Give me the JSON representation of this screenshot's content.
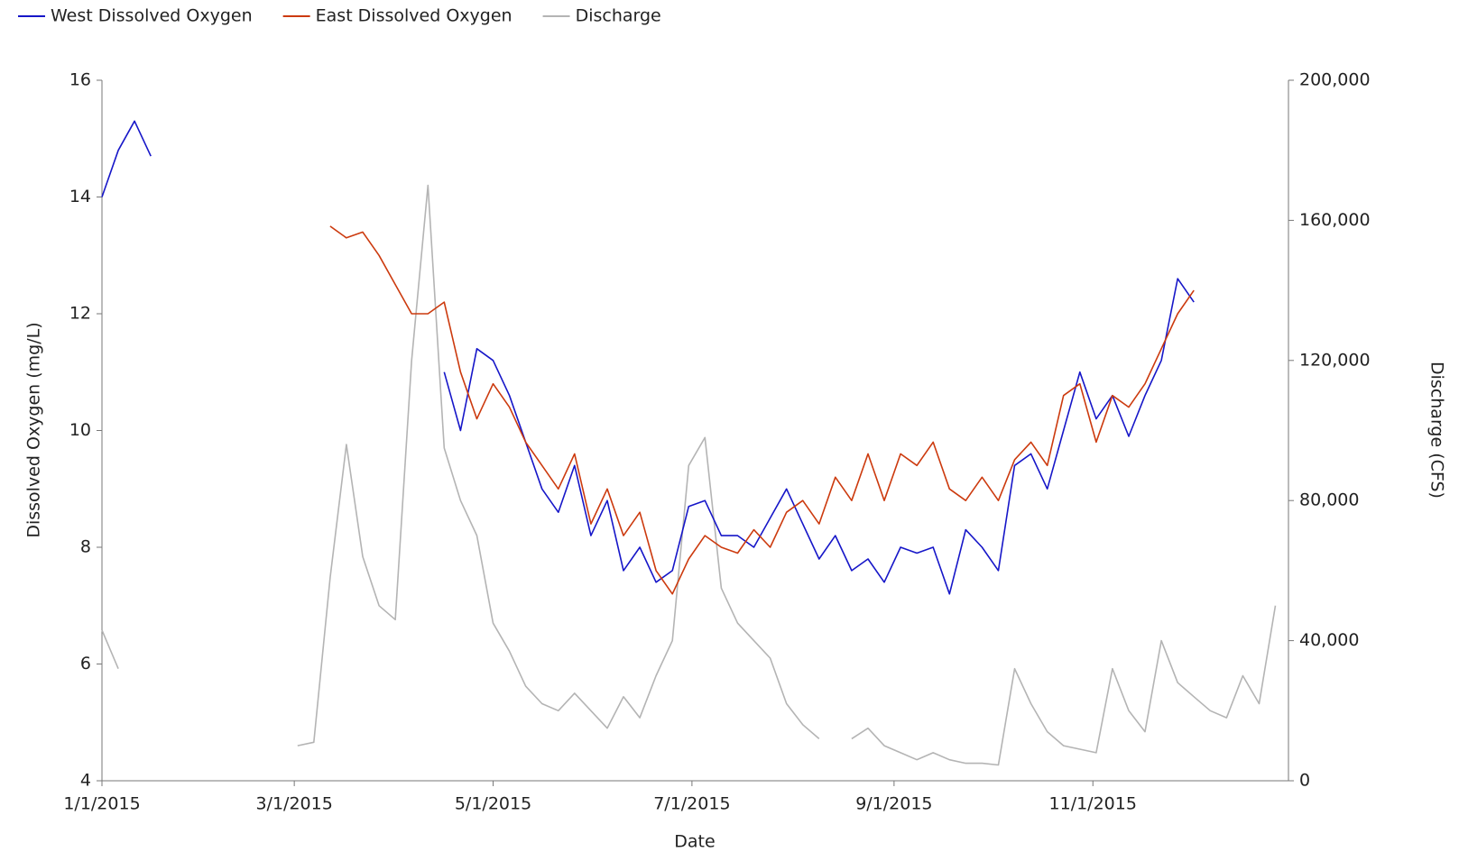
{
  "chart_data": {
    "type": "line",
    "xlabel": "Date",
    "ylabel": "Dissolved Oxygen (mg/L)",
    "y2label": "Discharge (CFS)",
    "legend": "top-left",
    "x": [
      "1/1/2015",
      "1/6/2015",
      "1/11/2015",
      "1/16/2015",
      "1/21/2015",
      "1/26/2015",
      "1/31/2015",
      "2/5/2015",
      "2/10/2015",
      "2/15/2015",
      "2/20/2015",
      "2/25/2015",
      "3/2/2015",
      "3/7/2015",
      "3/12/2015",
      "3/17/2015",
      "3/22/2015",
      "3/27/2015",
      "4/1/2015",
      "4/6/2015",
      "4/11/2015",
      "4/16/2015",
      "4/21/2015",
      "4/26/2015",
      "5/1/2015",
      "5/6/2015",
      "5/11/2015",
      "5/16/2015",
      "5/21/2015",
      "5/26/2015",
      "5/31/2015",
      "6/5/2015",
      "6/10/2015",
      "6/15/2015",
      "6/20/2015",
      "6/25/2015",
      "6/30/2015",
      "7/5/2015",
      "7/10/2015",
      "7/15/2015",
      "7/20/2015",
      "7/25/2015",
      "7/30/2015",
      "8/4/2015",
      "8/9/2015",
      "8/14/2015",
      "8/19/2015",
      "8/24/2015",
      "8/29/2015",
      "9/3/2015",
      "9/8/2015",
      "9/13/2015",
      "9/18/2015",
      "9/23/2015",
      "9/28/2015",
      "10/3/2015",
      "10/8/2015",
      "10/13/2015",
      "10/18/2015",
      "10/23/2015",
      "10/28/2015",
      "11/2/2015",
      "11/7/2015",
      "11/12/2015",
      "11/17/2015",
      "11/22/2015",
      "11/27/2015",
      "12/2/2015",
      "12/7/2015",
      "12/12/2015",
      "12/17/2015",
      "12/22/2015",
      "12/27/2015"
    ],
    "xlim": [
      "1/1/2015",
      "12/31/2015"
    ],
    "xticks": [
      "1/1/2015",
      "3/1/2015",
      "5/1/2015",
      "7/1/2015",
      "9/1/2015",
      "11/1/2015"
    ],
    "ylim": [
      4,
      16
    ],
    "yticks": [
      4,
      6,
      8,
      10,
      12,
      14,
      16
    ],
    "y2lim": [
      0,
      200000
    ],
    "y2ticks": [
      0,
      {
        "value": 40000,
        "label": "40,000"
      },
      {
        "value": 80000,
        "label": "80,000"
      },
      {
        "value": 120000,
        "label": "120,000"
      },
      {
        "value": 160000,
        "label": "160,000"
      },
      {
        "value": 200000,
        "label": "200,000"
      }
    ],
    "series": [
      {
        "name": "West Dissolved Oxygen",
        "color": "#1616c8",
        "values": [
          14.0,
          14.8,
          15.3,
          14.7,
          null,
          null,
          null,
          null,
          null,
          null,
          null,
          null,
          null,
          null,
          null,
          null,
          null,
          null,
          null,
          null,
          null,
          11.0,
          10.0,
          11.4,
          11.2,
          10.6,
          9.8,
          9.0,
          8.6,
          9.4,
          8.2,
          8.8,
          7.6,
          8.0,
          7.4,
          7.6,
          8.7,
          8.8,
          8.2,
          8.2,
          8.0,
          8.5,
          9.0,
          8.4,
          7.8,
          8.2,
          7.6,
          7.8,
          7.4,
          8.0,
          7.9,
          8.0,
          7.2,
          8.3,
          8.0,
          7.6,
          9.4,
          9.6,
          9.0,
          10.0,
          11.0,
          10.2,
          10.6,
          9.9,
          10.6,
          11.2,
          12.6,
          12.2,
          null,
          null,
          null,
          null,
          null
        ]
      },
      {
        "name": "East Dissolved Oxygen",
        "color": "#cc3a0e",
        "values": [
          null,
          null,
          null,
          null,
          null,
          null,
          null,
          null,
          null,
          null,
          null,
          null,
          null,
          null,
          13.5,
          13.3,
          13.4,
          13.0,
          12.5,
          12.0,
          12.0,
          12.2,
          11.0,
          10.2,
          10.8,
          10.4,
          9.8,
          9.4,
          9.0,
          9.6,
          8.4,
          9.0,
          8.2,
          8.6,
          7.6,
          7.2,
          7.8,
          8.2,
          8.0,
          7.9,
          8.3,
          8.0,
          8.6,
          8.8,
          8.4,
          9.2,
          8.8,
          9.6,
          8.8,
          9.6,
          9.4,
          9.8,
          9.0,
          8.8,
          9.2,
          8.8,
          9.5,
          9.8,
          9.4,
          10.6,
          10.8,
          9.8,
          10.6,
          10.4,
          10.8,
          11.4,
          12.0,
          12.4,
          null,
          null,
          null,
          null,
          null
        ]
      },
      {
        "name": "Discharge",
        "color": "#b4b4b4",
        "axis": "y2",
        "values": [
          43000,
          32000,
          null,
          null,
          null,
          null,
          null,
          null,
          null,
          null,
          null,
          null,
          10000,
          11000,
          58000,
          96000,
          64000,
          50000,
          46000,
          120000,
          170000,
          95000,
          80000,
          70000,
          45000,
          37000,
          27000,
          22000,
          20000,
          25000,
          20000,
          15000,
          24000,
          18000,
          30000,
          40000,
          90000,
          98000,
          55000,
          45000,
          40000,
          35000,
          22000,
          16000,
          12000,
          null,
          12000,
          15000,
          10000,
          8000,
          6000,
          8000,
          6000,
          5000,
          5000,
          4500,
          32000,
          22000,
          14000,
          10000,
          9000,
          8000,
          32000,
          20000,
          14000,
          40000,
          28000,
          24000,
          20000,
          18000,
          30000,
          22000,
          50000
        ]
      }
    ]
  }
}
